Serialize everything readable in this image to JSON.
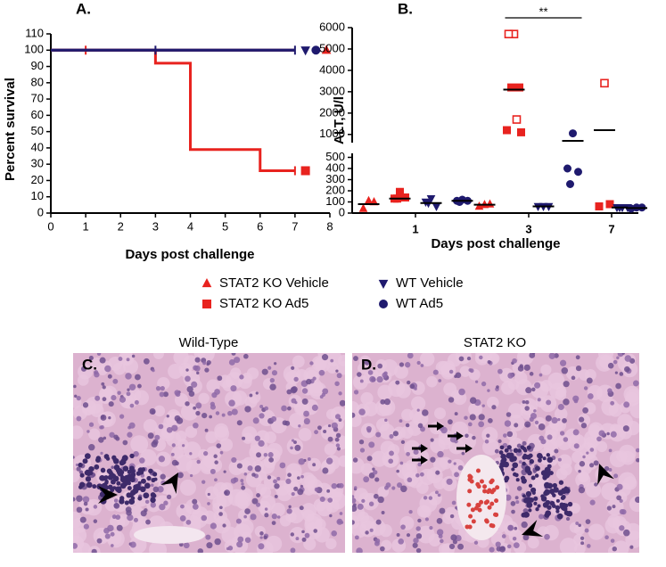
{
  "chart_data": [
    {
      "type": "line",
      "panel_label": "A.",
      "step": true,
      "xlabel": "Days post challenge",
      "ylabel": "Percent survival",
      "xlim": [
        0,
        8
      ],
      "xticks": [
        0,
        1,
        2,
        3,
        4,
        5,
        6,
        7,
        8
      ],
      "ylim": [
        0,
        110
      ],
      "yticks": [
        0,
        10,
        20,
        30,
        40,
        50,
        60,
        70,
        80,
        90,
        100,
        110
      ],
      "series": [
        {
          "name": "STAT2 KO Vehicle",
          "color": "#e8231f",
          "marker": "triangle-up",
          "x": [
            0,
            7
          ],
          "values": [
            100,
            100
          ],
          "censored": [
            1
          ]
        },
        {
          "name": "STAT2 KO Ad5",
          "color": "#e8231f",
          "marker": "square",
          "x": [
            0,
            3,
            4,
            6,
            7
          ],
          "values": [
            100,
            92,
            39,
            26,
            26
          ],
          "censored": [
            7
          ]
        },
        {
          "name": "WT Vehicle",
          "color": "#1f1a6e",
          "marker": "triangle-down",
          "x": [
            0,
            7
          ],
          "values": [
            100,
            100
          ],
          "censored": [
            3,
            7
          ]
        },
        {
          "name": "WT Ad5",
          "color": "#1f1a6e",
          "marker": "circle",
          "x": [
            0,
            7
          ],
          "values": [
            100,
            100
          ],
          "censored": []
        }
      ]
    },
    {
      "type": "scatter",
      "panel_label": "B.",
      "annotation": "**",
      "xlabel": "Days post challenge",
      "ylabel": "ALT, U/l",
      "categories": [
        "1",
        "3",
        "7"
      ],
      "ylim": [
        0,
        6000
      ],
      "ybreak": [
        520,
        700
      ],
      "yticks": [
        0,
        100,
        200,
        300,
        400,
        500,
        1000,
        2000,
        3000,
        4000,
        5000,
        6000
      ],
      "series": [
        {
          "name": "STAT2 KO Vehicle",
          "color": "#e8231f",
          "marker": "triangle-up",
          "category": [
            0,
            0,
            0,
            1,
            1,
            1
          ],
          "values": [
            110,
            40,
            100,
            75,
            60,
            80
          ],
          "hollow": [
            false,
            false,
            false,
            false,
            false,
            false
          ],
          "median_category": [
            0,
            1
          ],
          "medians": [
            80,
            75
          ]
        },
        {
          "name": "STAT2 KO Ad5",
          "color": "#e8231f",
          "marker": "square",
          "category": [
            0,
            0,
            0,
            0,
            1,
            1,
            1,
            1,
            1,
            1,
            1,
            2,
            2,
            2
          ],
          "values": [
            190,
            130,
            140,
            130,
            5700,
            5700,
            3200,
            3200,
            1700,
            1200,
            1100,
            3400,
            60,
            80
          ],
          "hollow": [
            false,
            false,
            false,
            false,
            true,
            true,
            false,
            false,
            true,
            false,
            false,
            true,
            false,
            false
          ],
          "median_category": [
            0,
            1,
            2
          ],
          "medians": [
            130,
            3100,
            1200
          ]
        },
        {
          "name": "WT Vehicle",
          "color": "#1f1a6e",
          "marker": "triangle-down",
          "category": [
            0,
            0,
            0,
            0,
            1,
            1,
            1,
            2,
            2,
            2,
            2
          ],
          "values": [
            130,
            100,
            60,
            90,
            60,
            60,
            60,
            50,
            50,
            50,
            50
          ],
          "hollow": [
            false,
            false,
            false,
            false,
            false,
            false,
            false,
            false,
            false,
            false,
            false
          ],
          "median_category": [
            0,
            1,
            2
          ],
          "medians": [
            90,
            60,
            50
          ]
        },
        {
          "name": "WT Ad5",
          "color": "#1f1a6e",
          "marker": "circle",
          "category": [
            0,
            0,
            0,
            0,
            1,
            1,
            1,
            1,
            2,
            2,
            2
          ],
          "values": [
            120,
            110,
            110,
            100,
            1050,
            400,
            370,
            260,
            50,
            40,
            50
          ],
          "hollow": [
            false,
            false,
            false,
            false,
            false,
            false,
            false,
            false,
            false,
            false,
            false
          ],
          "median_category": [
            0,
            1,
            2
          ],
          "medians": [
            110,
            700,
            45
          ]
        }
      ]
    }
  ],
  "panels": [
    {
      "title": "Wild-Type",
      "label": "C."
    },
    {
      "title": "STAT2 KO",
      "label": "D."
    }
  ]
}
